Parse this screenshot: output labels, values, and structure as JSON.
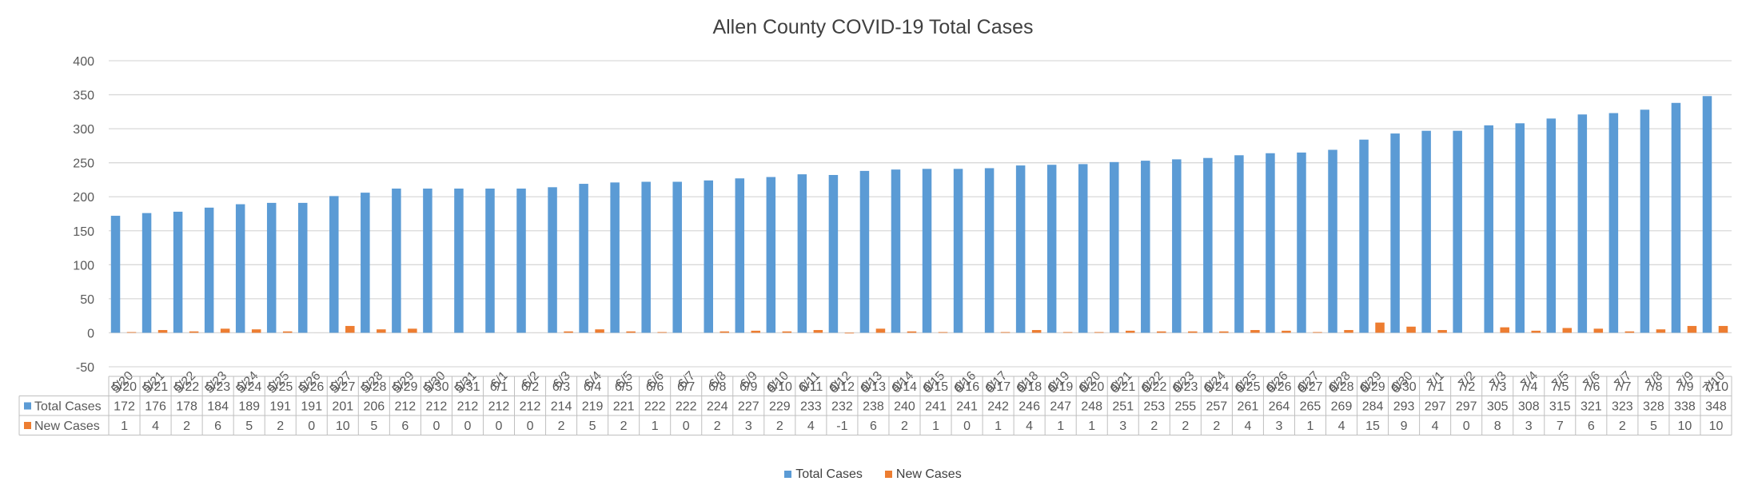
{
  "chart_data": {
    "type": "bar",
    "title": "Allen County COVID-19 Total Cases",
    "xlabel": "",
    "ylabel": "",
    "ylim": [
      -50,
      400
    ],
    "yticks": [
      -50,
      0,
      50,
      100,
      150,
      200,
      250,
      300,
      350,
      400
    ],
    "grid": true,
    "legend_position": "bottom",
    "data_table": true,
    "categories": [
      "5/20",
      "5/21",
      "5/22",
      "5/23",
      "5/24",
      "5/25",
      "5/26",
      "5/27",
      "5/28",
      "5/29",
      "5/30",
      "5/31",
      "6/1",
      "6/2",
      "6/3",
      "6/4",
      "6/5",
      "6/6",
      "6/7",
      "6/8",
      "6/9",
      "6/10",
      "6/11",
      "6/12",
      "6/13",
      "6/14",
      "6/15",
      "6/16",
      "6/17",
      "6/18",
      "6/19",
      "6/20",
      "6/21",
      "6/22",
      "6/23",
      "6/24",
      "6/25",
      "6/26",
      "6/27",
      "6/28",
      "6/29",
      "6/30",
      "7/1",
      "7/2",
      "7/3",
      "7/4",
      "7/5",
      "7/6",
      "7/7",
      "7/8",
      "7/9",
      "7/10"
    ],
    "series": [
      {
        "name": "Total Cases",
        "color": "#5B9BD5",
        "values": [
          172,
          176,
          178,
          184,
          189,
          191,
          191,
          201,
          206,
          212,
          212,
          212,
          212,
          212,
          214,
          219,
          221,
          222,
          222,
          224,
          227,
          229,
          233,
          232,
          238,
          240,
          241,
          241,
          242,
          246,
          247,
          248,
          251,
          253,
          255,
          257,
          261,
          264,
          265,
          269,
          284,
          293,
          297,
          297,
          305,
          308,
          315,
          321,
          323,
          328,
          338,
          348
        ]
      },
      {
        "name": "New Cases",
        "color": "#ED7D31",
        "values": [
          1,
          4,
          2,
          6,
          5,
          2,
          0,
          10,
          5,
          6,
          0,
          0,
          0,
          0,
          2,
          5,
          2,
          1,
          0,
          2,
          3,
          2,
          4,
          -1,
          6,
          2,
          1,
          0,
          1,
          4,
          1,
          1,
          3,
          2,
          2,
          2,
          4,
          3,
          1,
          4,
          15,
          9,
          4,
          0,
          8,
          3,
          7,
          6,
          2,
          5,
          10,
          10
        ]
      }
    ]
  }
}
